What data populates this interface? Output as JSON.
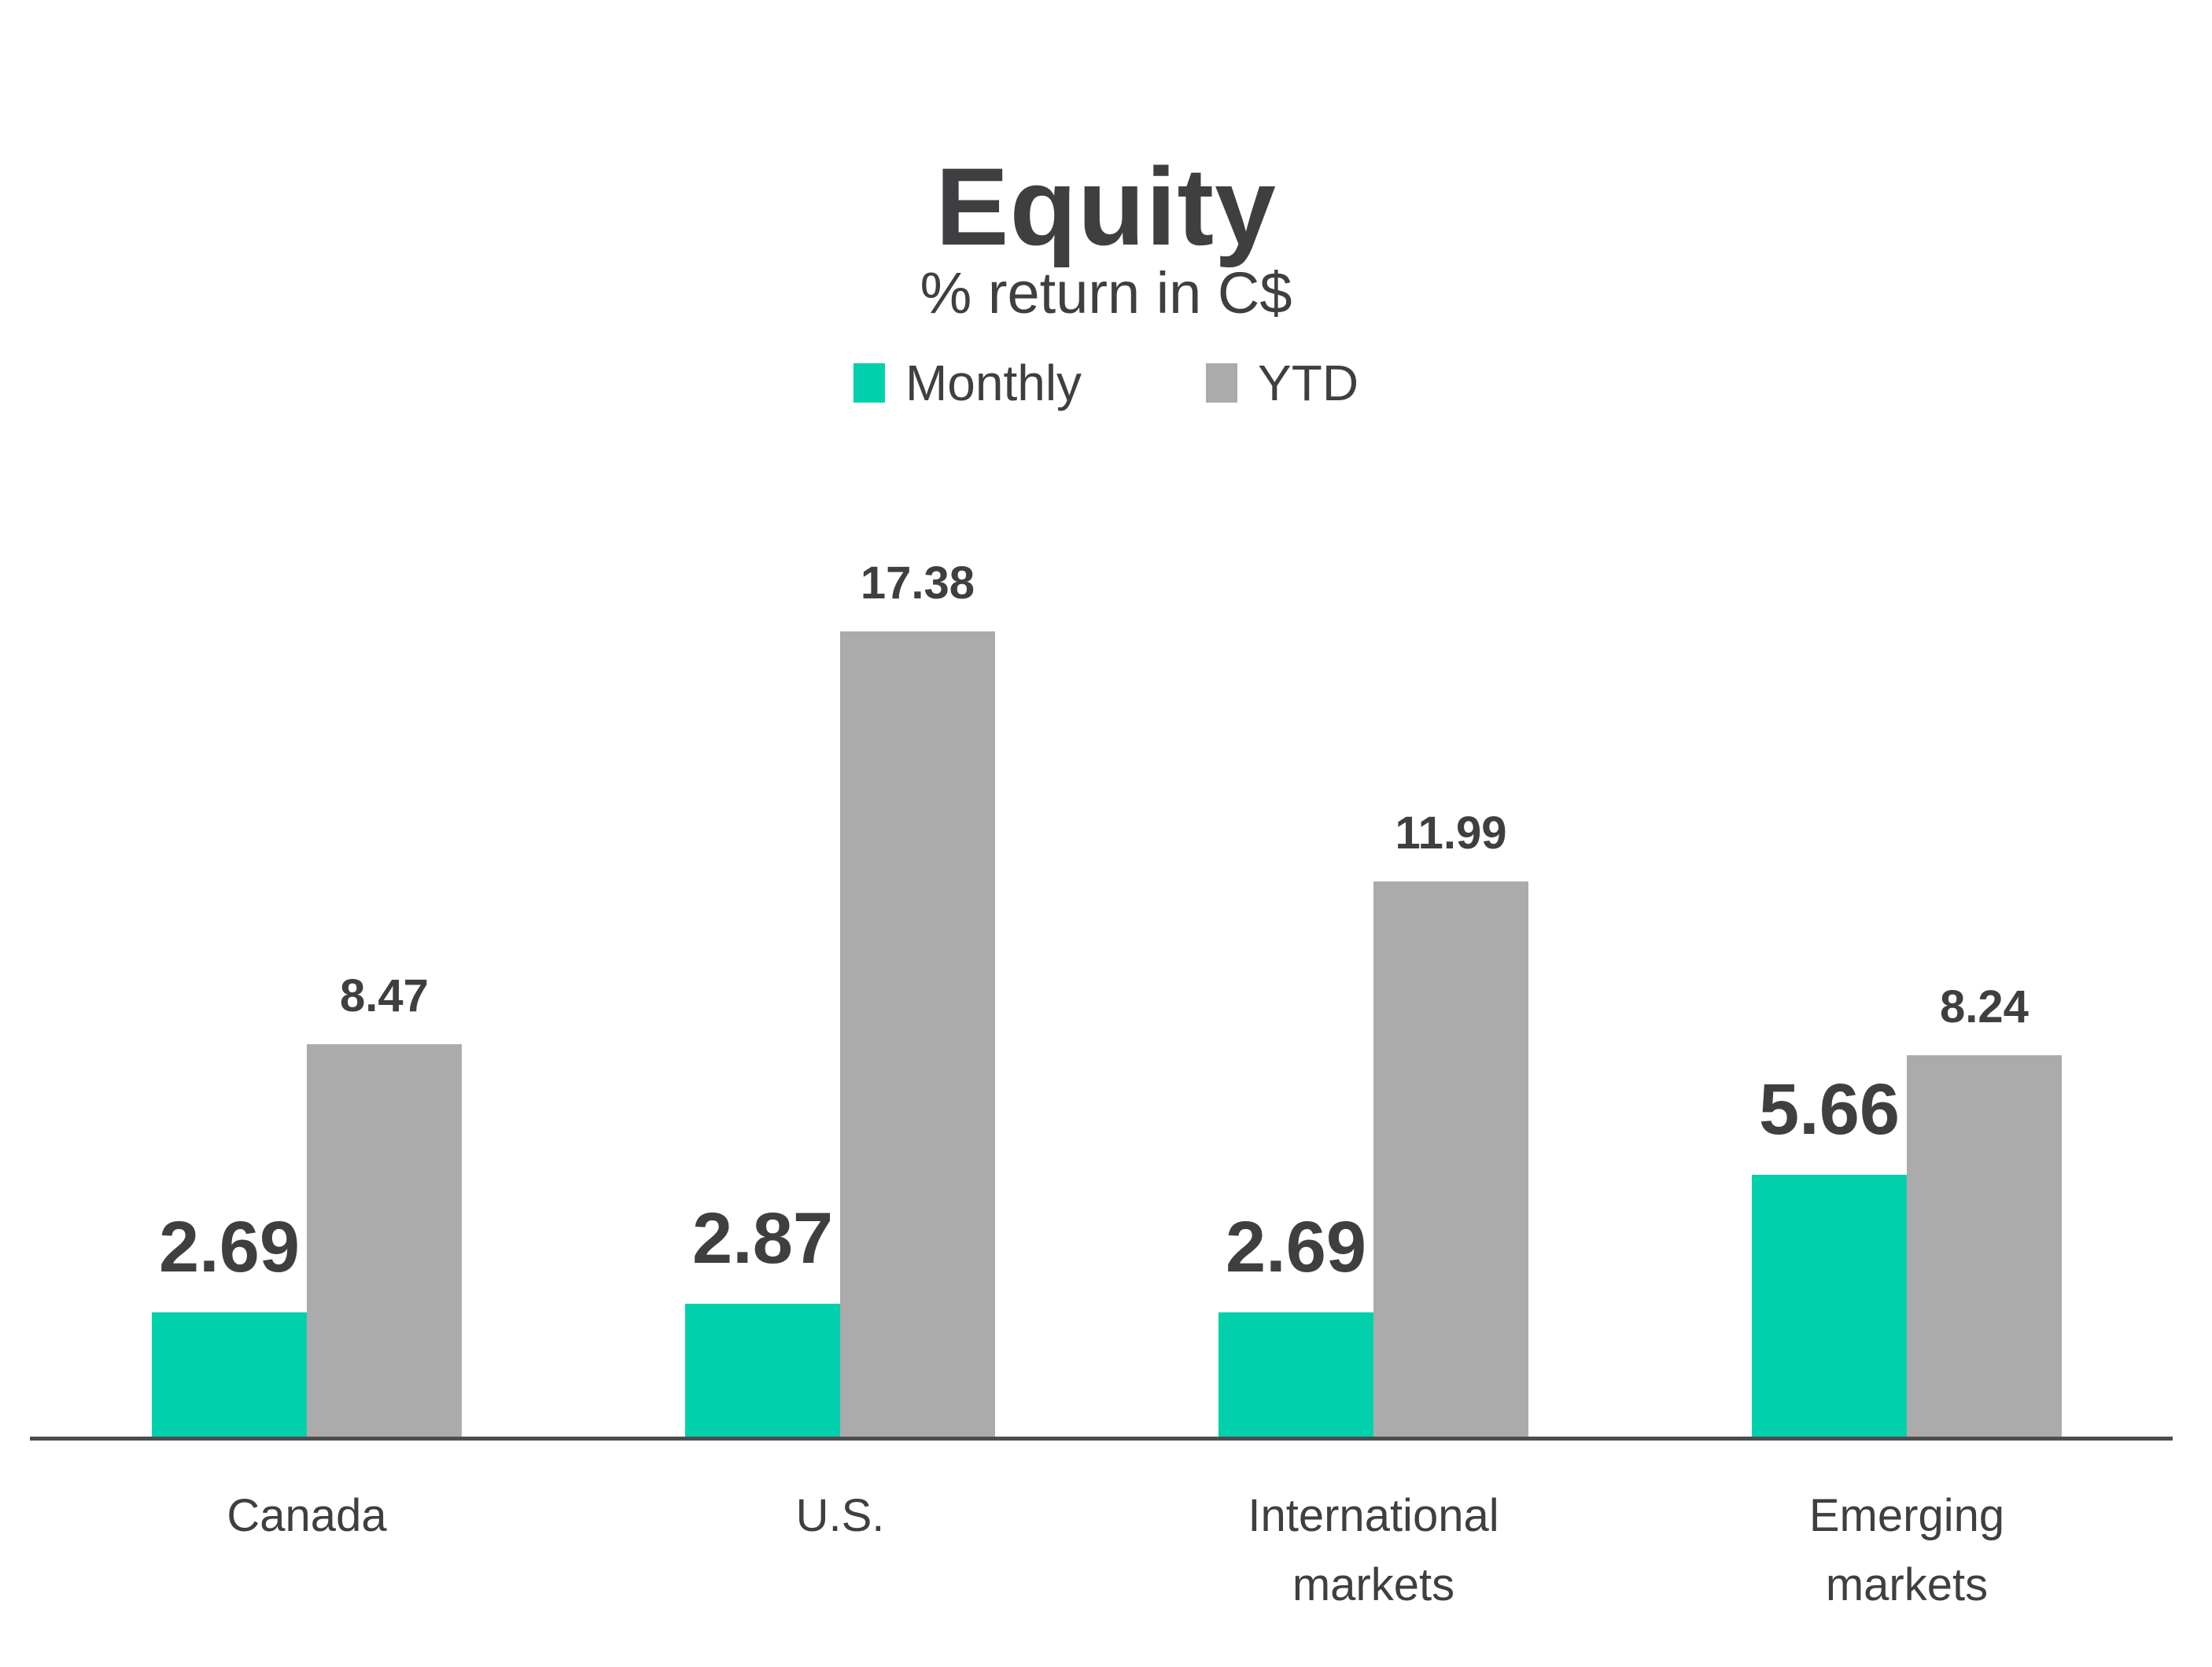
{
  "header": {
    "title": "Equity",
    "subtitle": "% return in C$"
  },
  "legend": {
    "monthly": "Monthly",
    "ytd": "YTD"
  },
  "colors": {
    "monthly_teal": "#00D0AC",
    "ytd_gray": "#ABABAB",
    "text_dark": "#3F3F41",
    "axis_gray": "#4D4D4F"
  },
  "chart_data": {
    "type": "bar",
    "title": "Equity",
    "subtitle": "% return in C$",
    "categories": [
      "Canada",
      "U.S.",
      "International\nmarkets",
      "Emerging\nmarkets"
    ],
    "series": [
      {
        "name": "Monthly",
        "color": "#00D0AC",
        "values": [
          2.69,
          2.87,
          2.69,
          5.66
        ]
      },
      {
        "name": "YTD",
        "color": "#ABABAB",
        "values": [
          8.47,
          17.38,
          11.99,
          8.24
        ]
      }
    ],
    "value_labels": {
      "monthly": [
        "2.69",
        "2.87",
        "2.69",
        "5.66"
      ],
      "ytd": [
        "8.47",
        "17.38",
        "11.99",
        "8.24"
      ]
    },
    "ylabel": "",
    "xlabel": "",
    "ylim": [
      0,
      18
    ],
    "grid": false,
    "legend_position": "top",
    "data_labels": true
  }
}
